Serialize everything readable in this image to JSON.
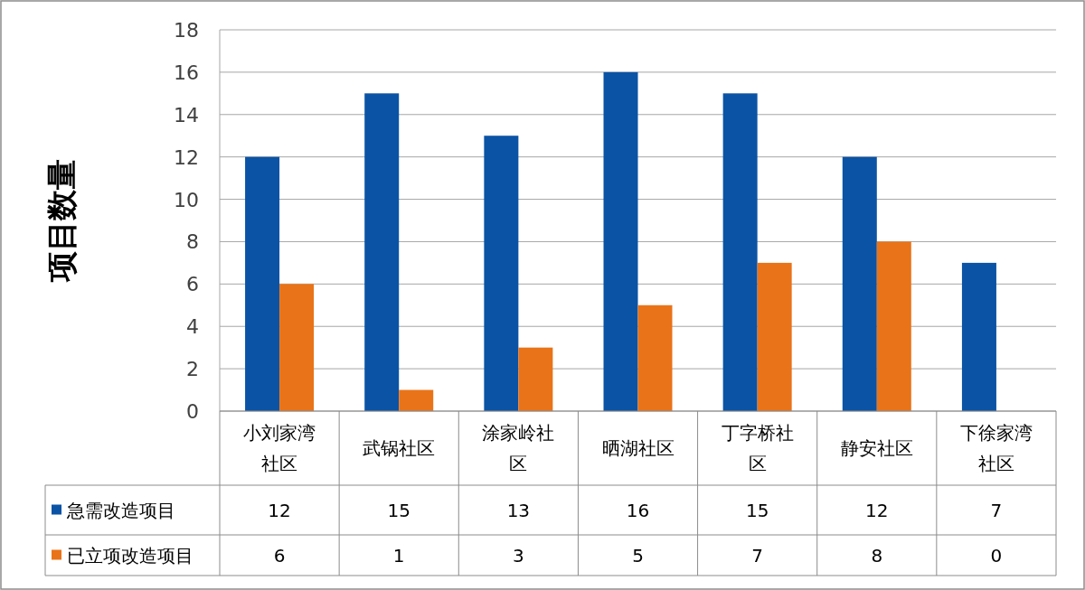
{
  "chart_data": {
    "type": "bar",
    "ylabel": "项目数量",
    "categories": [
      "小刘家湾社区",
      "武锅社区",
      "涂家岭社区",
      "晒湖社区",
      "丁字桥社区",
      "静安社区",
      "下徐家湾社区"
    ],
    "series": [
      {
        "name": "急需改造项目",
        "color": "#0b53a5",
        "values": [
          12,
          15,
          13,
          16,
          15,
          12,
          7
        ]
      },
      {
        "name": "已立项改造项目",
        "color": "#e97318",
        "values": [
          6,
          1,
          3,
          5,
          7,
          8,
          0
        ]
      }
    ],
    "ylim": [
      0,
      18
    ],
    "yticks": [
      0,
      2,
      4,
      6,
      8,
      10,
      12,
      14,
      16,
      18
    ],
    "grid": "y",
    "legend": "bottom",
    "data_labels": true
  }
}
